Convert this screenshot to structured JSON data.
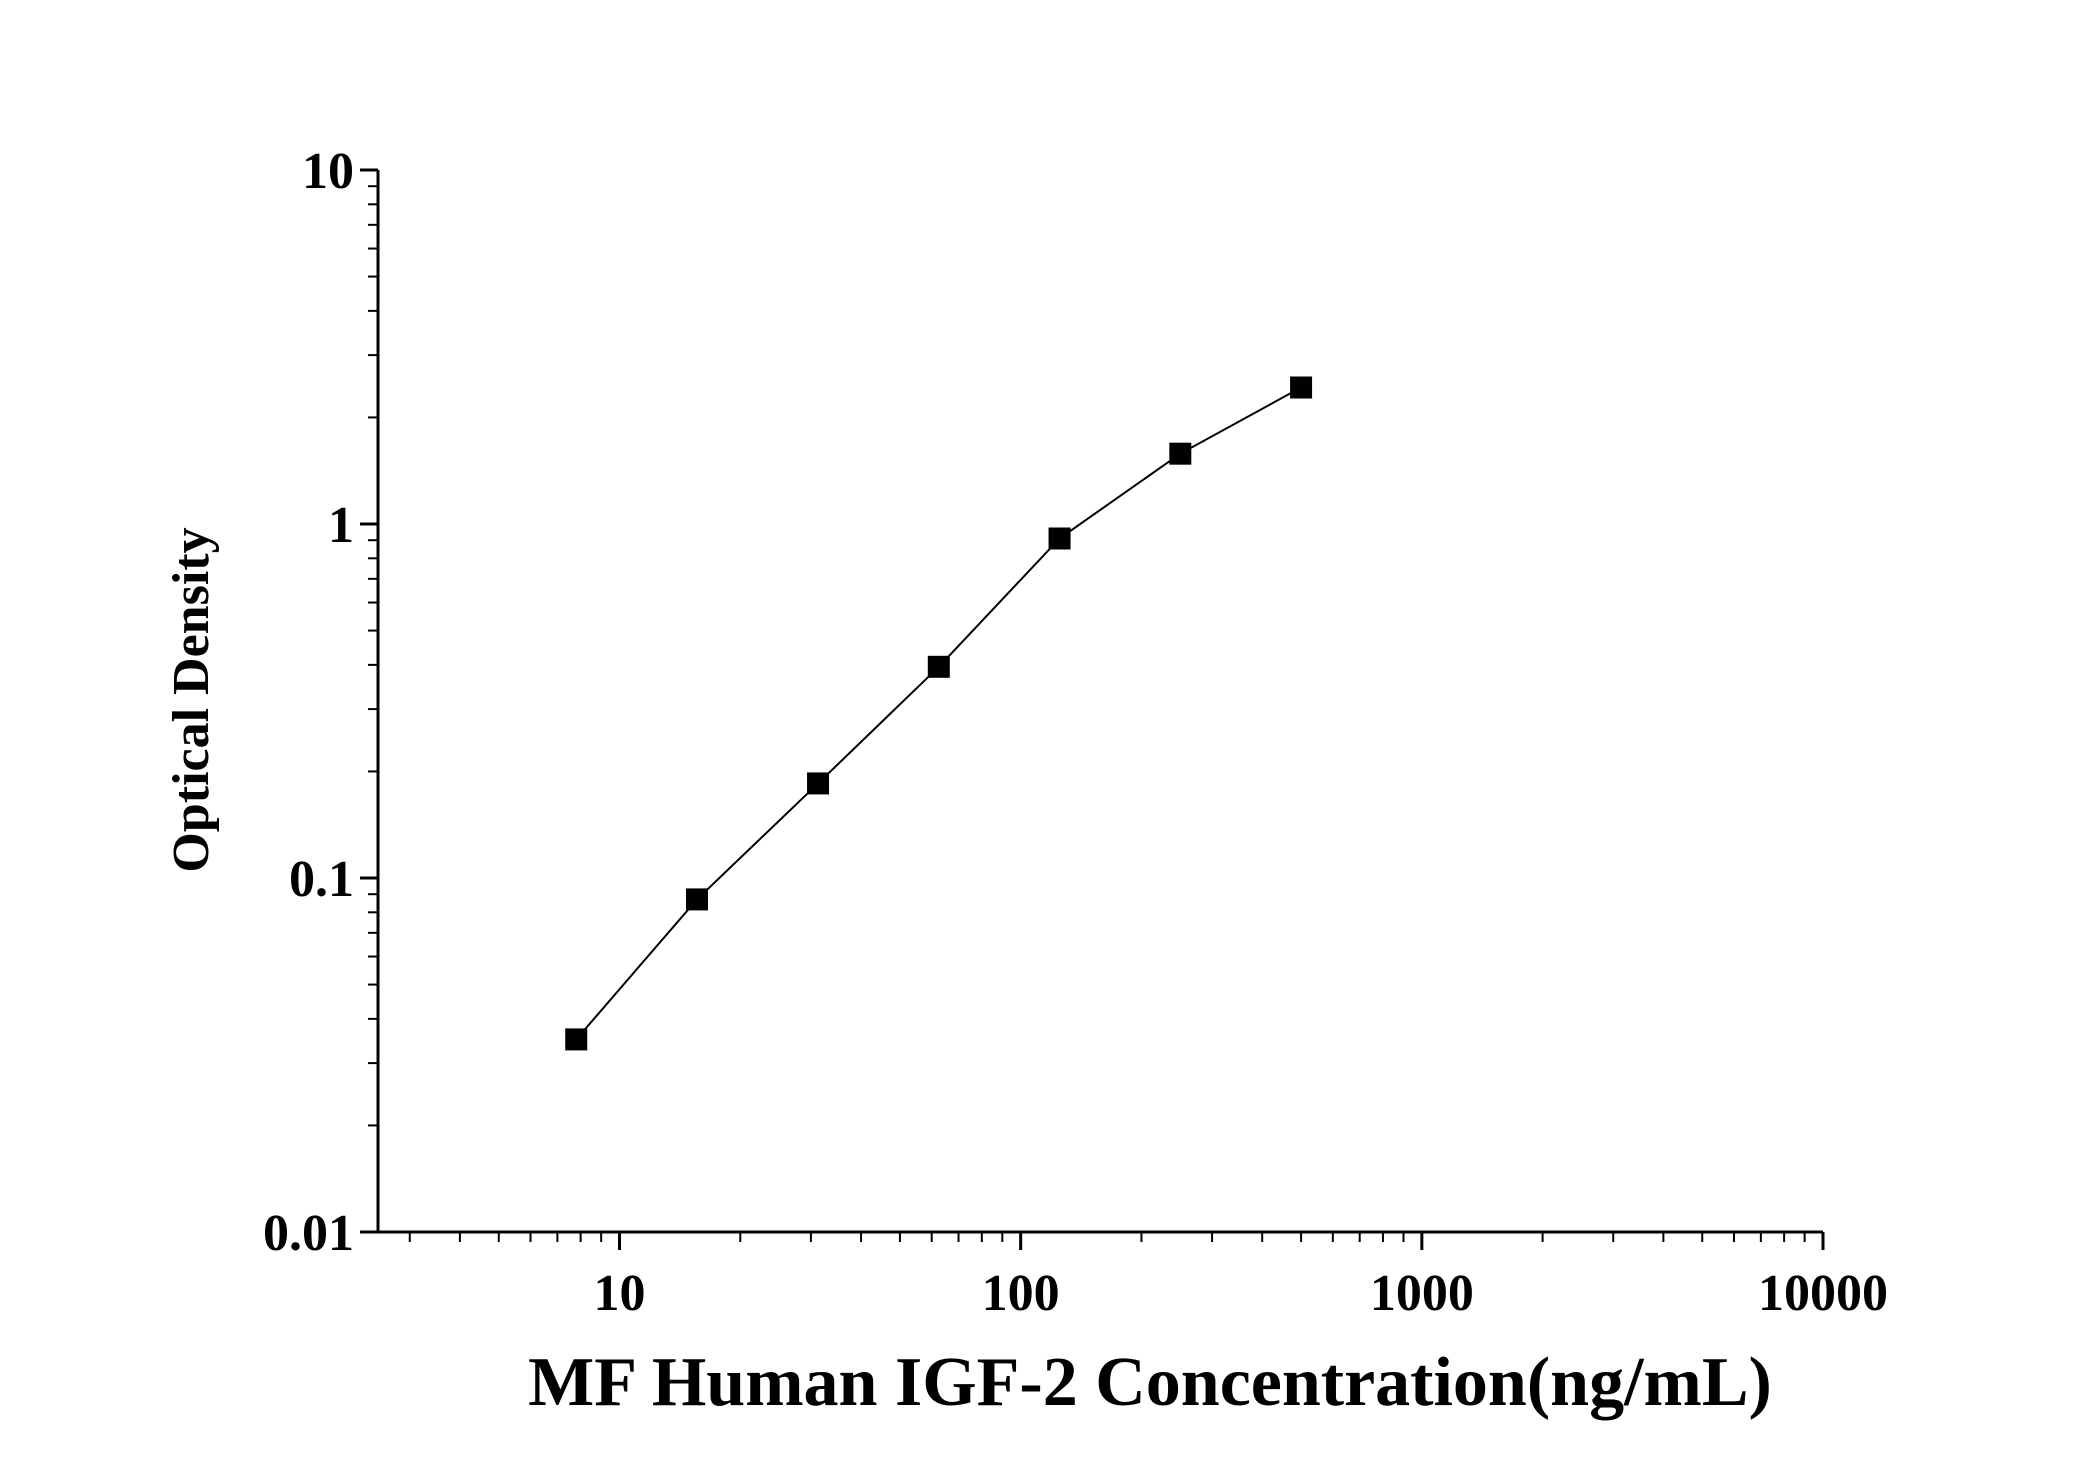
{
  "chart_data": {
    "type": "scatter",
    "title": "",
    "xlabel": "MF Human IGF-2 Concentration(ng/mL)",
    "ylabel": "Optical Density",
    "x_scale": "log",
    "y_scale": "log",
    "xlim": [
      2.5,
      10000
    ],
    "ylim": [
      0.01,
      10
    ],
    "x_ticks": [
      "10",
      "100",
      "1000",
      "10000"
    ],
    "y_ticks": [
      "0.01",
      "0.1",
      "1",
      "10"
    ],
    "grid": false,
    "legend": "none",
    "marker": "square",
    "line": "connected",
    "color": "#000000",
    "series": [
      {
        "x": [
          7.8,
          15.6,
          31.25,
          62.5,
          125,
          250,
          500
        ],
        "y": [
          0.035,
          0.087,
          0.185,
          0.395,
          0.91,
          1.58,
          2.43
        ]
      }
    ]
  }
}
